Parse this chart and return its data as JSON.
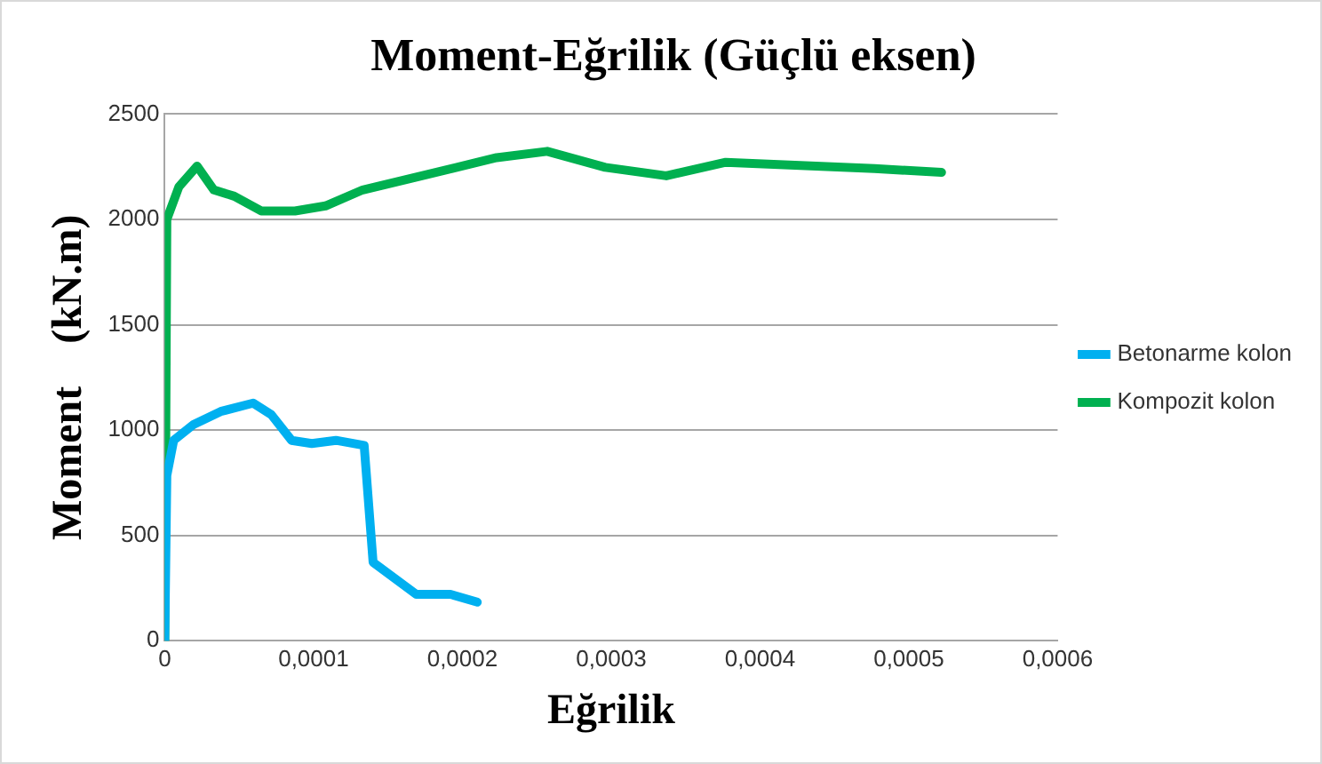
{
  "chart_data": {
    "type": "line",
    "title": "Moment-Eğrilik (Güçlü eksen)",
    "xlabel": "Eğrilik",
    "ylabel": "Moment    (kN.m)",
    "xlim": [
      0,
      0.0006
    ],
    "xticks": [
      0,
      {
        "value": 0.0001,
        "label": "0,0001"
      },
      {
        "value": 0.0002,
        "label": "0,0002"
      },
      {
        "value": 0.0003,
        "label": "0,0003"
      },
      {
        "value": 0.0004,
        "label": "0,0004"
      },
      {
        "value": 0.0005,
        "label": "0,0005"
      },
      {
        "value": 0.0006,
        "label": "0,0006"
      }
    ],
    "ylim": [
      0,
      2500
    ],
    "yticks": [
      0,
      500,
      1000,
      1500,
      2000,
      2500
    ],
    "grid": "y",
    "legend": "right",
    "marker": "none",
    "line_style": "solid",
    "series": [
      {
        "name": "Betonarme kolon",
        "color": "#00b0f0",
        "x": [
          0,
          1.4e-06,
          6e-06,
          1.95e-05,
          3.76e-05,
          5.94e-05,
          7.16e-05,
          8.52e-05,
          9.88e-05,
          0.000115,
          0.000134,
          0.00014,
          0.000169,
          0.000192,
          0.00021
        ],
        "values": [
          0,
          784,
          951,
          1027,
          1088,
          1128,
          1073,
          951,
          936,
          951,
          927,
          372,
          220,
          220,
          183
        ]
      },
      {
        "name": "Kompozit kolon",
        "color": "#00b050",
        "x": [
          0,
          1.4e-06,
          9.5e-06,
          2.17e-05,
          3.3e-05,
          4.67e-05,
          6.48e-05,
          8.75e-05,
          0.000108,
          0.000133,
          0.000169,
          0.000223,
          0.000257,
          0.000296,
          0.000337,
          0.000377,
          0.000477,
          0.000522
        ],
        "values": [
          0,
          2000,
          2155,
          2253,
          2140,
          2110,
          2040,
          2040,
          2064,
          2140,
          2201,
          2293,
          2323,
          2247,
          2207,
          2271,
          2241,
          2223
        ]
      }
    ]
  }
}
